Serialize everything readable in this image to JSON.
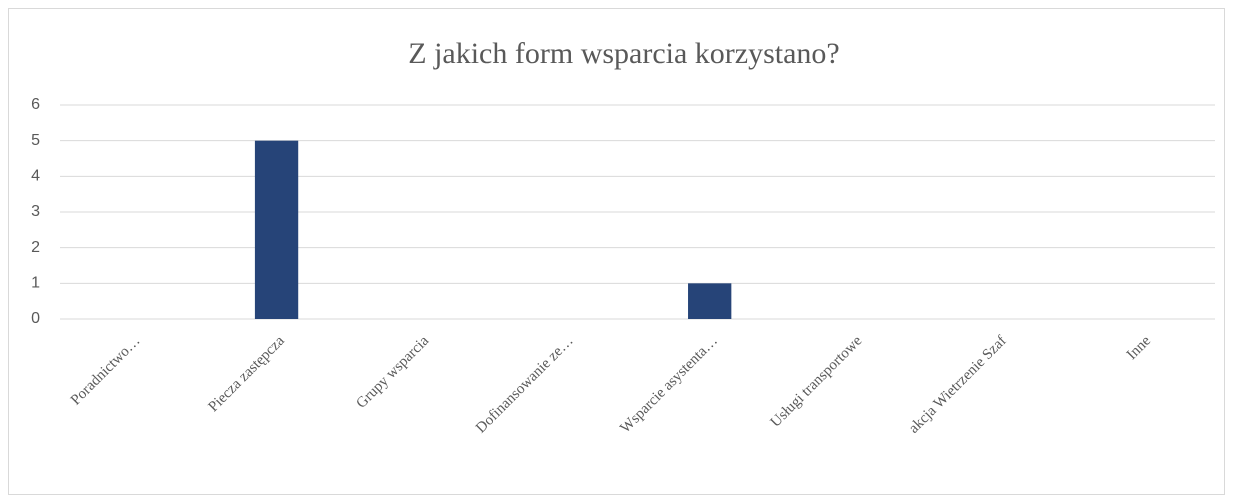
{
  "chart_data": {
    "type": "bar",
    "title": "Z jakich form wsparcia korzystano?",
    "categories": [
      "Poradnictwo…",
      "Piecza zastępcza",
      "Grupy wsparcia",
      "Dofinansowanie ze…",
      "Wsparcie asystenta…",
      "Usługi transportowe",
      "akcja Wietrzenie Szaf",
      "Inne"
    ],
    "values": [
      0,
      5,
      0,
      0,
      1,
      0,
      0,
      0
    ],
    "color": "#264478",
    "ylim": [
      0,
      6
    ],
    "yticks": [
      0,
      1,
      2,
      3,
      4,
      5,
      6
    ],
    "grid": true
  }
}
